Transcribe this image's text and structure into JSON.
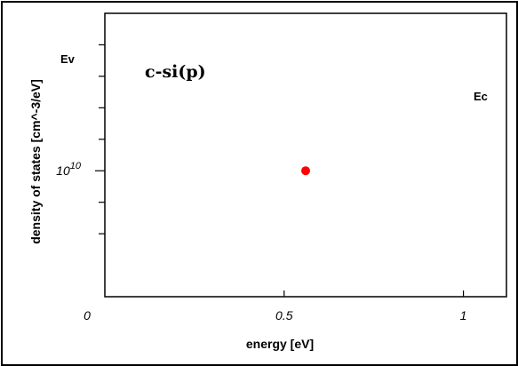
{
  "chart_data": {
    "type": "scatter",
    "title": "c-si(p)",
    "xlabel": "energy [eV]",
    "ylabel": "density of states [cm^-3/eV]",
    "xlim": [
      0,
      1.12
    ],
    "x_ticks": [
      0,
      0.5,
      1
    ],
    "x_tick_labels": [
      "0",
      "0.5",
      "1"
    ],
    "yscale": "log",
    "ylim_log10": [
      8,
      12.5
    ],
    "y_tick_label": {
      "base": "10",
      "exponent": "10"
    },
    "grid": false,
    "annotations": {
      "valence_band_edge": "Ev",
      "conduction_band_edge": "Ec"
    },
    "series": [
      {
        "color": "#ff0000",
        "points": [
          {
            "x": 0.56,
            "y_log10": 10
          }
        ]
      }
    ]
  }
}
